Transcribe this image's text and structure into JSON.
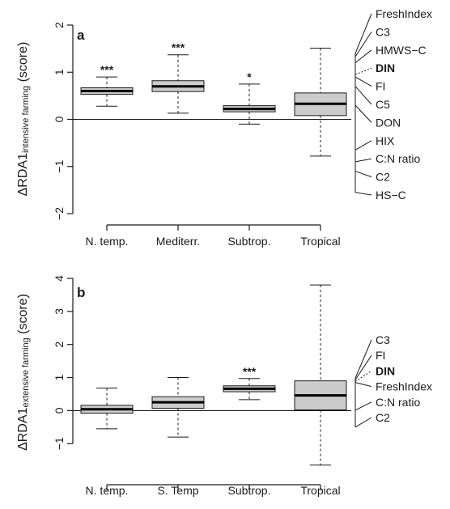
{
  "chart_data": [
    {
      "type": "box",
      "panel_label": "a",
      "ylabel_prefix": "ΔRDA1",
      "ylabel_sub": "intensive farming",
      "ylabel_suffix": " (score)",
      "ylim": [
        -2,
        2
      ],
      "yticks": [
        "−2",
        "−1",
        "0",
        "1",
        "2"
      ],
      "categories": [
        "N. temp.",
        "Mediterr.",
        "Subtrop.",
        "Tropical"
      ],
      "boxes": [
        {
          "whisker_low": 0.28,
          "q1": 0.53,
          "median": 0.6,
          "q3": 0.67,
          "whisker_high": 0.9,
          "significance": "***"
        },
        {
          "whisker_low": 0.13,
          "q1": 0.59,
          "median": 0.7,
          "q3": 0.82,
          "whisker_high": 1.37,
          "significance": "***"
        },
        {
          "whisker_low": -0.1,
          "q1": 0.16,
          "median": 0.22,
          "q3": 0.29,
          "whisker_high": 0.75,
          "significance": "*"
        },
        {
          "whisker_low": -0.78,
          "q1": 0.08,
          "median": 0.33,
          "q3": 0.56,
          "whisker_high": 1.51,
          "significance": ""
        }
      ],
      "variables": [
        {
          "label": "FreshIndex",
          "value": 1.4,
          "bold": false
        },
        {
          "label": "C3",
          "value": 1.33,
          "bold": false
        },
        {
          "label": "HMWS−C",
          "value": 1.2,
          "bold": false
        },
        {
          "label": "DIN",
          "value": 0.95,
          "bold": true
        },
        {
          "label": "FI",
          "value": 0.9,
          "bold": false
        },
        {
          "label": "C5",
          "value": 0.7,
          "bold": false
        },
        {
          "label": "DON",
          "value": 0.3,
          "bold": false
        },
        {
          "label": "HIX",
          "value": -0.65,
          "bold": false
        },
        {
          "label": "C:N ratio",
          "value": -0.9,
          "bold": false
        },
        {
          "label": "C2",
          "value": -1.1,
          "bold": false
        },
        {
          "label": "HS−C",
          "value": -1.55,
          "bold": false
        }
      ]
    },
    {
      "type": "box",
      "panel_label": "b",
      "ylabel_prefix": "ΔRDA1",
      "ylabel_sub": "extensive farming",
      "ylabel_suffix": " (score)",
      "ylim": [
        -1.9,
        4
      ],
      "yticks": [
        "−1",
        "0",
        "1",
        "2",
        "3",
        "4"
      ],
      "categories": [
        "N. temp.",
        "S. Temp",
        "Subtrop.",
        "Tropical"
      ],
      "boxes": [
        {
          "whisker_low": -0.55,
          "q1": -0.08,
          "median": 0.04,
          "q3": 0.16,
          "whisker_high": 0.68,
          "significance": ""
        },
        {
          "whisker_low": -0.8,
          "q1": 0.07,
          "median": 0.25,
          "q3": 0.42,
          "whisker_high": 1.0,
          "significance": ""
        },
        {
          "whisker_low": 0.33,
          "q1": 0.57,
          "median": 0.66,
          "q3": 0.75,
          "whisker_high": 0.97,
          "significance": "***"
        },
        {
          "whisker_low": -1.65,
          "q1": 0.02,
          "median": 0.46,
          "q3": 0.9,
          "whisker_high": 3.8,
          "significance": ""
        }
      ],
      "variables": [
        {
          "label": "C3",
          "value": 0.98,
          "bold": false
        },
        {
          "label": "FI",
          "value": 0.93,
          "bold": false
        },
        {
          "label": "DIN",
          "value": 0.88,
          "bold": true
        },
        {
          "label": "FreshIndex",
          "value": 0.85,
          "bold": false
        },
        {
          "label": "C:N ratio",
          "value": 0.01,
          "bold": false
        },
        {
          "label": "C2",
          "value": -0.5,
          "bold": false
        }
      ]
    }
  ]
}
